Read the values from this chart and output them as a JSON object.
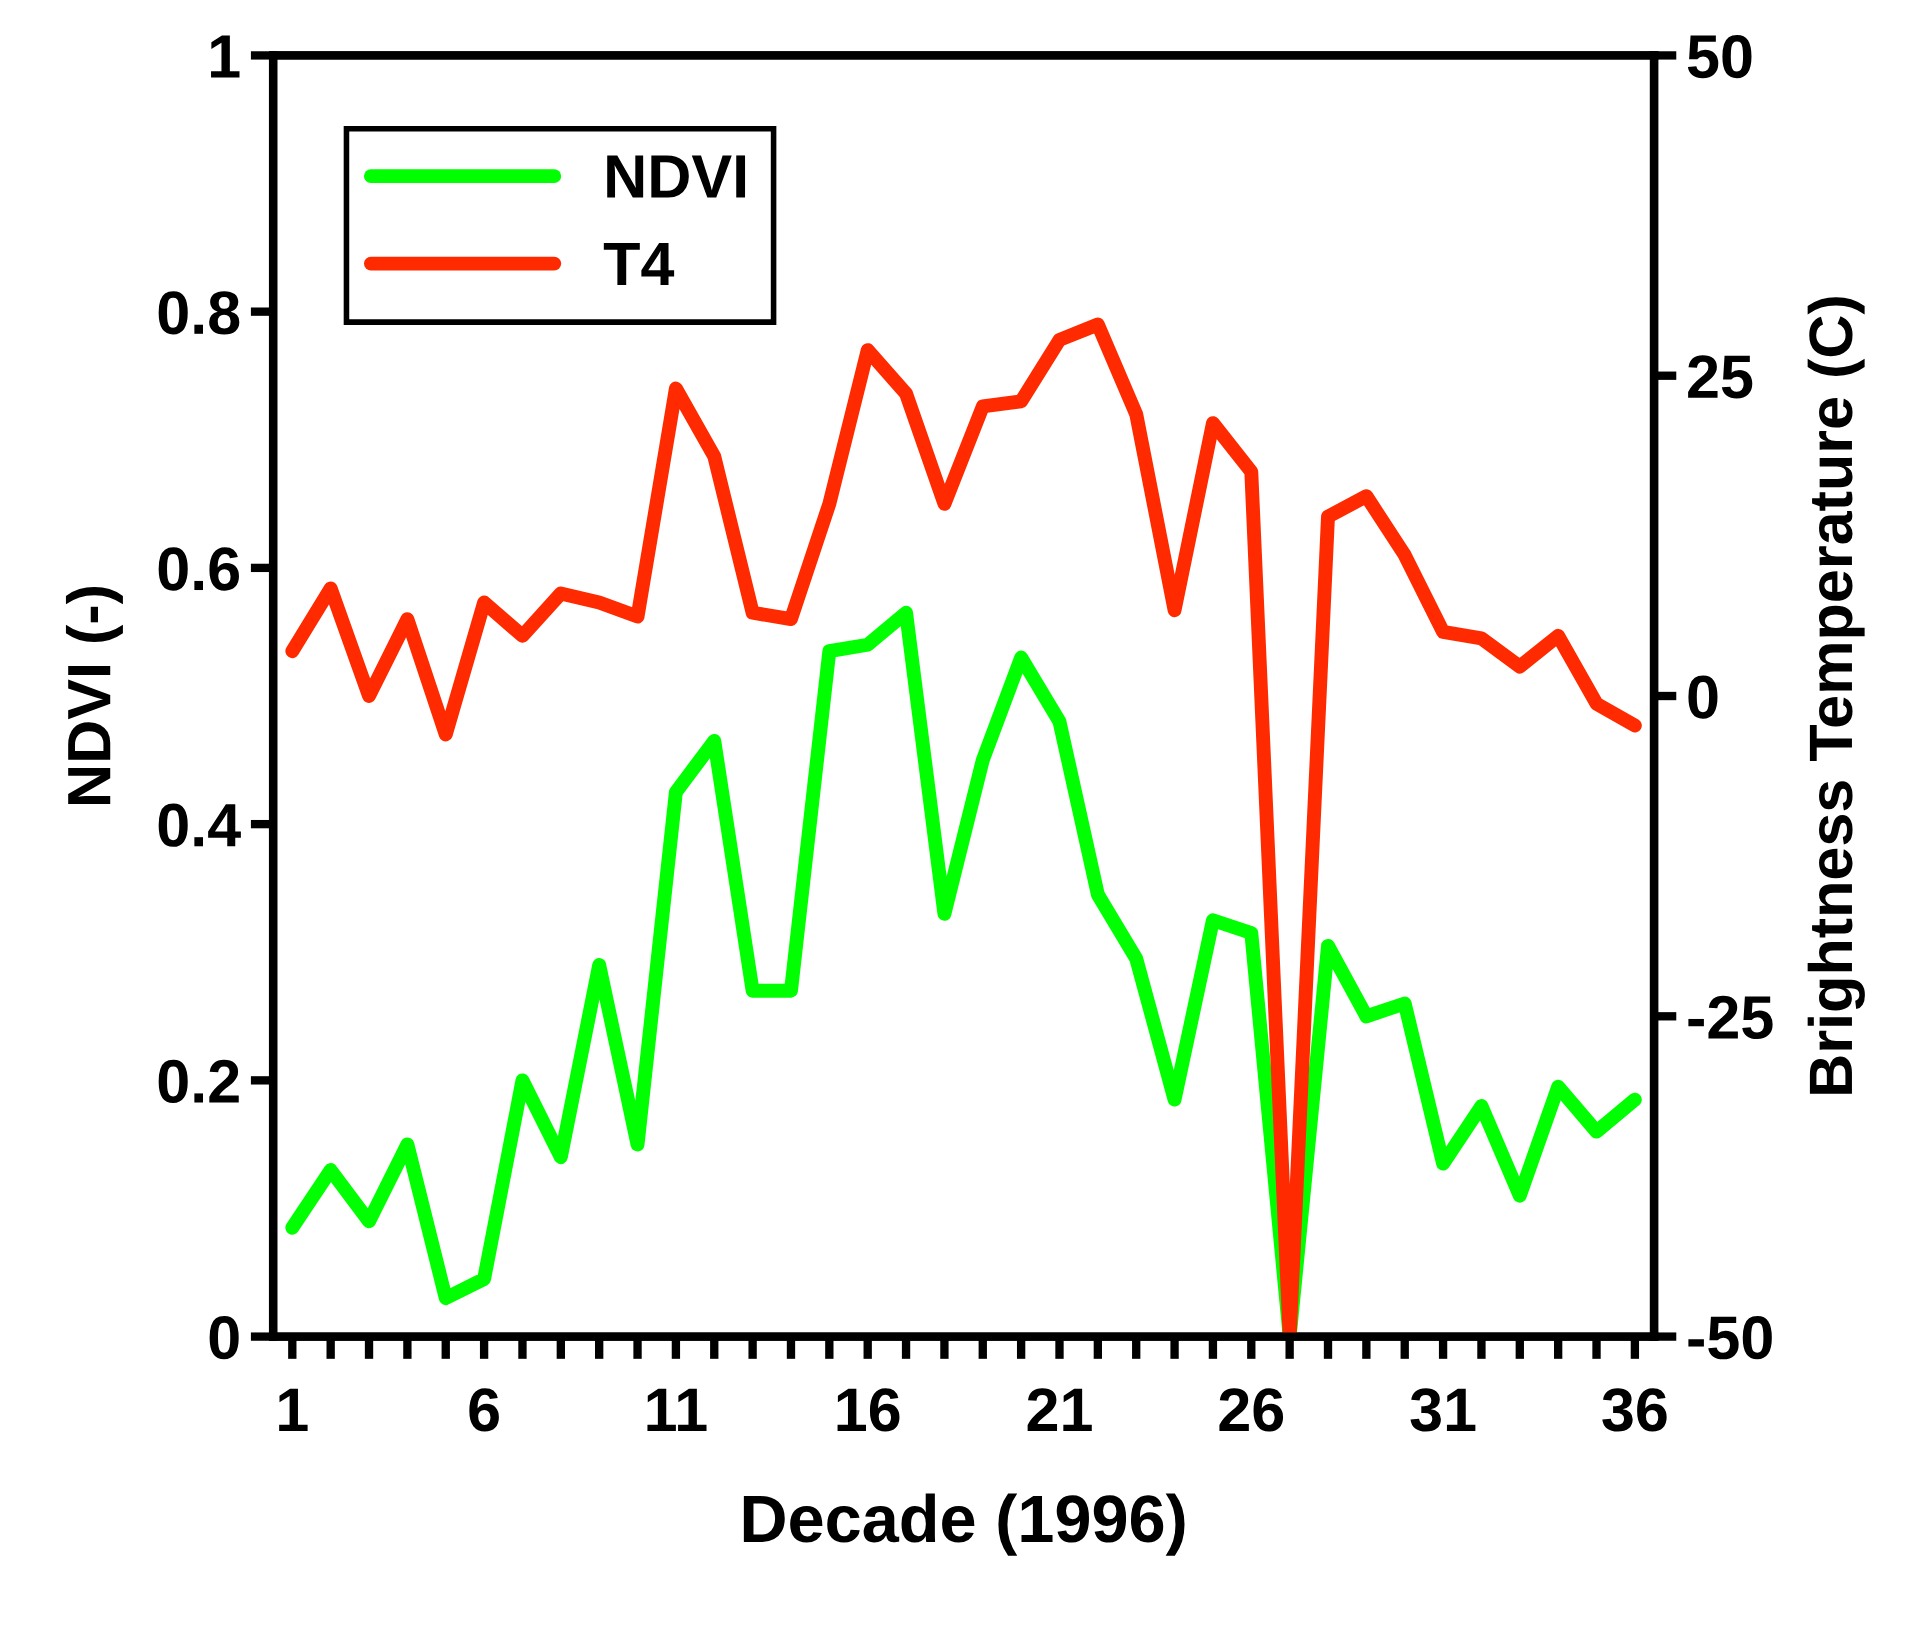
{
  "chart_data": {
    "type": "line",
    "xlabel": "Decade (1996)",
    "ylabel": "NDVI (-)",
    "y2label": "Brightness Temperature (C)",
    "x": [
      1,
      2,
      3,
      4,
      5,
      6,
      7,
      8,
      9,
      10,
      11,
      12,
      13,
      14,
      15,
      16,
      17,
      18,
      19,
      20,
      21,
      22,
      23,
      24,
      25,
      26,
      27,
      28,
      29,
      30,
      31,
      32,
      33,
      34,
      35,
      36
    ],
    "series": [
      {
        "name": "NDVI",
        "color": "#00ff00",
        "values": [
          0.085,
          0.13,
          0.09,
          0.15,
          0.03,
          0.045,
          0.2,
          0.14,
          0.29,
          0.15,
          0.425,
          0.465,
          0.27,
          0.27,
          0.535,
          0.54,
          0.565,
          0.33,
          0.45,
          0.53,
          0.48,
          0.345,
          0.295,
          0.185,
          0.325,
          0.315,
          0.0,
          0.305,
          0.25,
          0.26,
          0.135,
          0.18,
          0.11,
          0.195,
          0.16,
          0.185
        ]
      },
      {
        "name": "T4",
        "color": "#ff2a00",
        "axis": "y2",
        "values": [
          3.5,
          8.4,
          0,
          6,
          -3,
          7.3,
          4.7,
          8,
          7.3,
          6.2,
          24,
          18.7,
          6.5,
          6,
          15,
          27,
          23.6,
          15,
          22.6,
          23,
          27.8,
          29,
          22,
          6.7,
          21.3,
          17.5,
          -50,
          14,
          15.6,
          11,
          5,
          4.5,
          2.3,
          4.7,
          -0.6,
          -2.3
        ]
      }
    ],
    "xlim": [
      0.5,
      36.5
    ],
    "xticks": [
      1,
      {
        "value": 2,
        "label": null
      },
      {
        "value": 3,
        "label": null
      },
      {
        "value": 4,
        "label": null
      },
      {
        "value": 5,
        "label": null
      },
      6,
      {
        "value": 7,
        "label": null
      },
      {
        "value": 8,
        "label": null
      },
      {
        "value": 9,
        "label": null
      },
      {
        "value": 10,
        "label": null
      },
      11,
      {
        "value": 12,
        "label": null
      },
      {
        "value": 13,
        "label": null
      },
      {
        "value": 14,
        "label": null
      },
      {
        "value": 15,
        "label": null
      },
      16,
      {
        "value": 17,
        "label": null
      },
      {
        "value": 18,
        "label": null
      },
      {
        "value": 19,
        "label": null
      },
      {
        "value": 20,
        "label": null
      },
      21,
      {
        "value": 22,
        "label": null
      },
      {
        "value": 23,
        "label": null
      },
      {
        "value": 24,
        "label": null
      },
      {
        "value": 25,
        "label": null
      },
      26,
      {
        "value": 27,
        "label": null
      },
      {
        "value": 28,
        "label": null
      },
      {
        "value": 29,
        "label": null
      },
      {
        "value": 30,
        "label": null
      },
      31,
      {
        "value": 32,
        "label": null
      },
      {
        "value": 33,
        "label": null
      },
      {
        "value": 34,
        "label": null
      },
      {
        "value": 35,
        "label": null
      },
      36
    ],
    "ylim": [
      0,
      1
    ],
    "yticks": [
      0,
      0.2,
      0.4,
      0.6,
      0.8,
      1
    ],
    "y2lim": [
      -50,
      50
    ],
    "y2ticks": [
      -50,
      -25,
      0,
      25,
      50
    ],
    "legend": "top left",
    "grid": false,
    "marker": "none",
    "line_style": "solid"
  }
}
